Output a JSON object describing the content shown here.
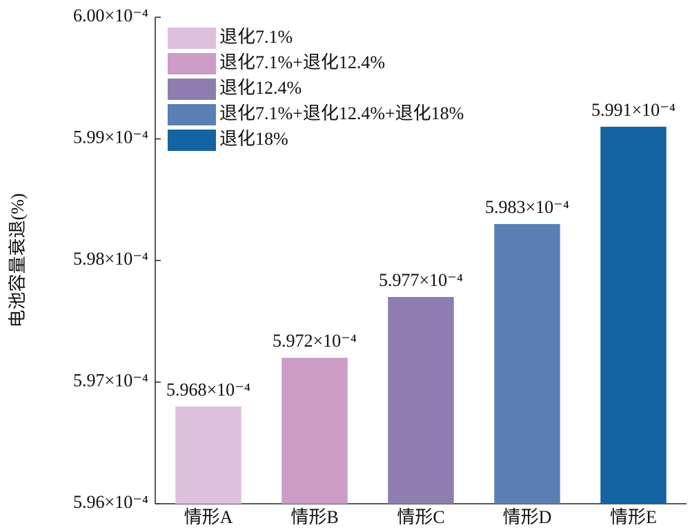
{
  "chart_data": {
    "type": "bar",
    "y_label": "电池容量衰退(%)",
    "categories": [
      "情形A",
      "情形B",
      "情形C",
      "情形D",
      "情形E"
    ],
    "series": [
      {
        "name": "退化7.1%",
        "color": "#dfc0dc",
        "values": [
          0.0005968,
          null,
          null,
          null,
          null
        ],
        "value_labels": [
          "5.968×10⁻⁴",
          null,
          null,
          null,
          null
        ]
      },
      {
        "name": "退化7.1%+退化12.4%",
        "color": "#cc9cc6",
        "values": [
          null,
          0.0005972,
          null,
          null,
          null
        ],
        "value_labels": [
          null,
          "5.972×10⁻⁴",
          null,
          null,
          null
        ]
      },
      {
        "name": "退化12.4%",
        "color": "#8f7daf",
        "values": [
          null,
          null,
          0.0005977,
          null,
          null
        ],
        "value_labels": [
          null,
          null,
          "5.977×10⁻⁴",
          null,
          null
        ]
      },
      {
        "name": "退化7.1%+退化12.4%+退化18%",
        "color": "#5b7fb5",
        "values": [
          null,
          null,
          null,
          0.0005983,
          null
        ],
        "value_labels": [
          null,
          null,
          null,
          "5.983×10⁻⁴",
          null
        ]
      },
      {
        "name": "退化18%",
        "color": "#1464a3",
        "values": [
          null,
          null,
          null,
          null,
          0.0005991
        ],
        "value_labels": [
          null,
          null,
          null,
          null,
          "5.991×10⁻⁴"
        ]
      }
    ],
    "ylim": [
      0.000596,
      0.0006
    ],
    "yticks": [
      {
        "value": 0.000596,
        "label": "5.96×10⁻⁴"
      },
      {
        "value": 0.000597,
        "label": "5.97×10⁻⁴"
      },
      {
        "value": 0.000598,
        "label": "5.98×10⁻⁴"
      },
      {
        "value": 0.000599,
        "label": "5.99×10⁻⁴"
      },
      {
        "value": 0.0006,
        "label": "6.00×10⁻⁴"
      }
    ],
    "legend": "upper-left"
  }
}
